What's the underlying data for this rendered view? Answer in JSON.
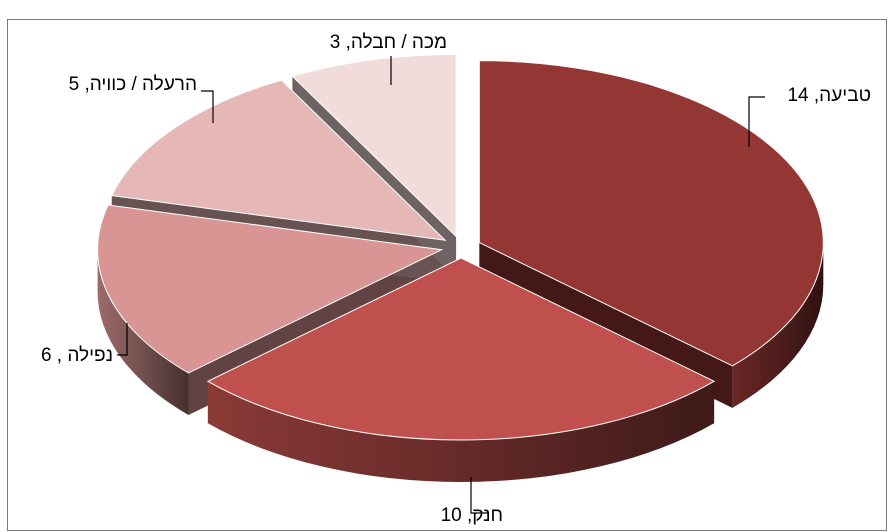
{
  "chart_data": {
    "type": "pie",
    "style": "3d-exploded",
    "title": "",
    "series": [
      {
        "slices": [
          {
            "label": "טביעה",
            "value": 14,
            "color": "#943634"
          },
          {
            "label": "חנק",
            "value": 10,
            "color": "#c0504d"
          },
          {
            "label": "נפילה",
            "value": 6,
            "color": "#d99594"
          },
          {
            "label": "הרעלה / כוויה",
            "value": 5,
            "color": "#e5b8b7"
          },
          {
            "label": "מכה / חבלה",
            "value": 3,
            "color": "#f2dcdb"
          }
        ]
      }
    ],
    "data_labels": [
      "טביעה, 14",
      "חנק, 10",
      "נפילה , 6",
      "הרעלה / כוויה, 5",
      "מכה / חבלה, 3"
    ],
    "legend": "none",
    "leader_lines": true
  }
}
